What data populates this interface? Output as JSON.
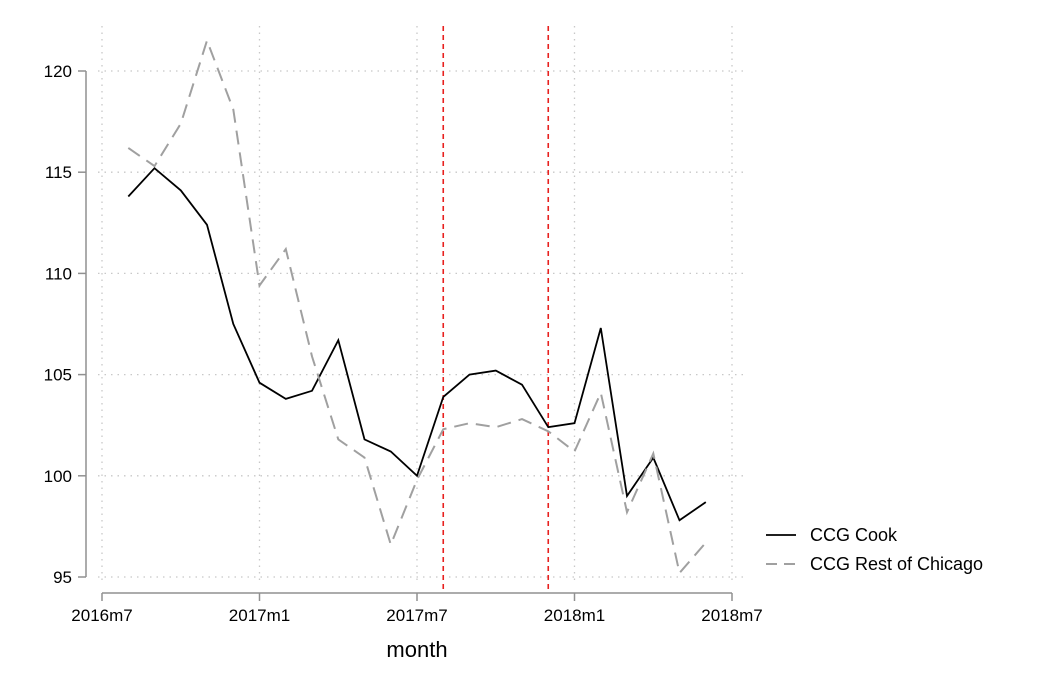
{
  "chart_data": {
    "type": "line",
    "title": "",
    "xlabel": "month",
    "ylabel": "",
    "xlim": [
      0,
      24
    ],
    "ylim": [
      95,
      122
    ],
    "x_ticks": [
      {
        "value": 0,
        "label": "2016m7"
      },
      {
        "value": 6,
        "label": "2017m1"
      },
      {
        "value": 12,
        "label": "2017m7"
      },
      {
        "value": 18,
        "label": "2018m1"
      },
      {
        "value": 24,
        "label": "2018m7"
      }
    ],
    "y_ticks": [
      95,
      100,
      105,
      110,
      115,
      120
    ],
    "x_gridlines": [
      0,
      6,
      12,
      18,
      24
    ],
    "y_gridlines": [
      95,
      100,
      105,
      110,
      115,
      120
    ],
    "x": [
      1,
      2,
      3,
      4,
      5,
      6,
      7,
      8,
      9,
      10,
      11,
      12,
      13,
      14,
      15,
      16,
      17,
      18,
      19,
      20,
      21,
      22,
      23
    ],
    "series": [
      {
        "name": "CCG Cook",
        "color": "#000000",
        "style": "solid",
        "values": [
          113.8,
          115.2,
          114.1,
          112.4,
          107.5,
          104.6,
          103.8,
          104.2,
          106.7,
          101.8,
          101.2,
          100.0,
          103.9,
          105.0,
          105.2,
          104.5,
          102.4,
          102.6,
          107.3,
          99.0,
          100.9,
          97.8,
          98.7
        ]
      },
      {
        "name": "CCG Rest of Chicago",
        "color": "#a0a0a0",
        "style": "dashed",
        "values": [
          116.2,
          115.3,
          117.4,
          121.5,
          118.1,
          109.4,
          111.2,
          105.9,
          101.8,
          100.9,
          96.6,
          99.8,
          102.3,
          102.6,
          102.4,
          102.8,
          102.2,
          101.2,
          104.1,
          98.2,
          101.1,
          95.2,
          96.7
        ]
      }
    ],
    "reference_lines": [
      {
        "x": 13,
        "color": "#e8201e",
        "style": "dashed"
      },
      {
        "x": 17,
        "color": "#e8201e",
        "style": "dashed"
      }
    ],
    "grid": true,
    "legend_position": "bottom-right"
  }
}
